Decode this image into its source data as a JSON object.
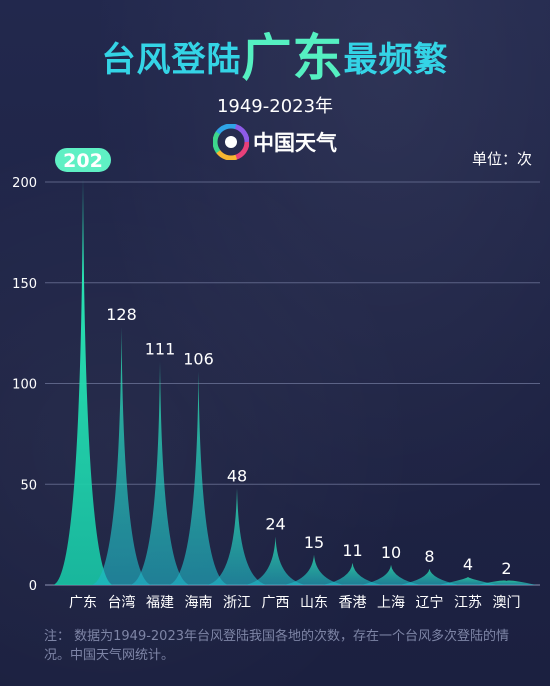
{
  "title": {
    "part1": "台风登陆",
    "part2": "广东",
    "part3": "最频繁"
  },
  "subtitle": "1949-2023年",
  "brand": {
    "name": "中国天气",
    "mark": "logo-icon"
  },
  "unit_label": "单位：次",
  "note": "注： 数据为1949-2023年台风登陆我国各地的次数，存在一个台风多次登陆的情况。中国天气网统计。",
  "colors": {
    "background": "#1f2446",
    "title_cyan": "#34d4e6",
    "title_green": "#55f0c1",
    "peak_top": "#2ee9b5",
    "peak_base": "#1fb6c8",
    "highlight_badge": "#5ff0c4"
  },
  "chart_data": {
    "type": "area",
    "categories": [
      "广东",
      "台湾",
      "福建",
      "海南",
      "浙江",
      "广西",
      "山东",
      "香港",
      "上海",
      "辽宁",
      "江苏",
      "澳门"
    ],
    "values": [
      202,
      128,
      111,
      106,
      48,
      24,
      15,
      11,
      10,
      8,
      4,
      2
    ],
    "ylim": [
      0,
      200
    ],
    "yticks": [
      0,
      50,
      100,
      150,
      200
    ],
    "grid": true,
    "highlight_index": 0,
    "xlabel": "",
    "ylabel": ""
  }
}
